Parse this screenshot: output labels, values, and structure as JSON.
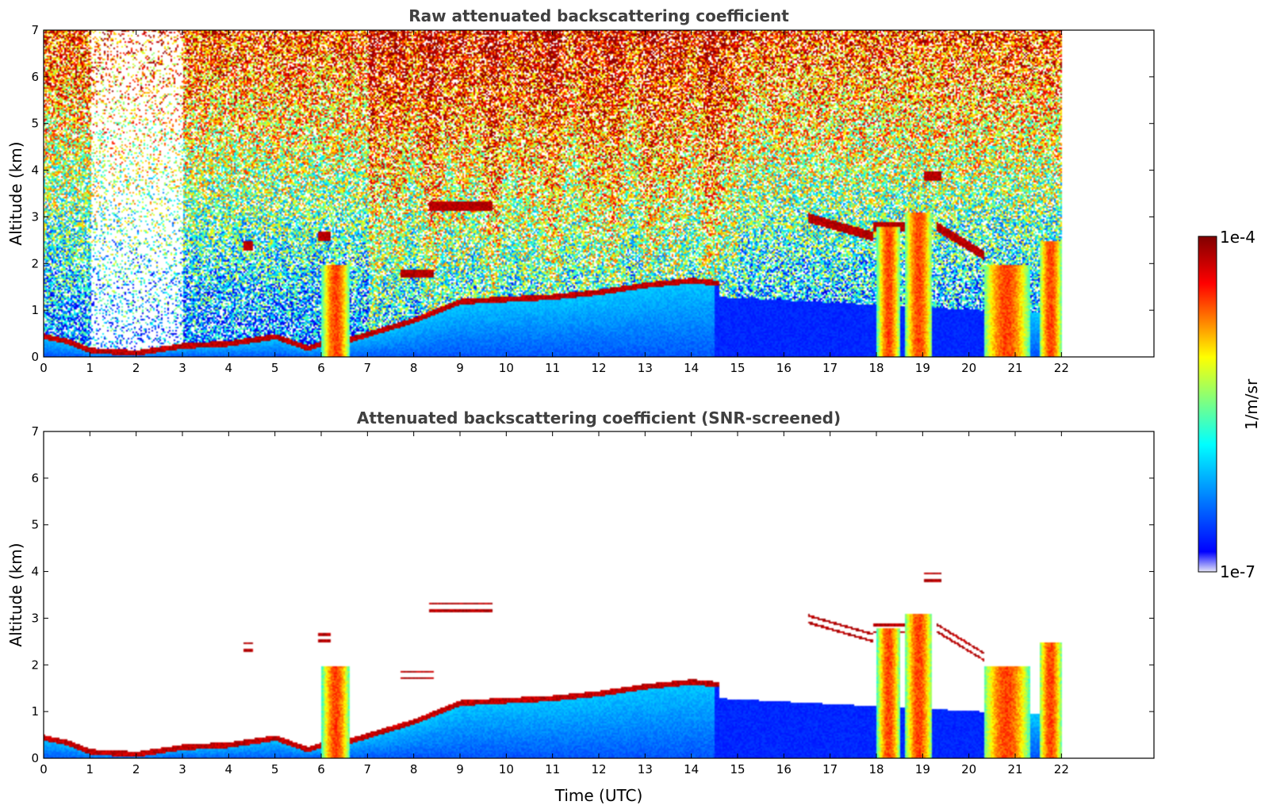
{
  "chart_data": [
    {
      "type": "heatmap",
      "title": "Raw attenuated backscattering coefficient",
      "xlabel": "",
      "ylabel": "Altitude (km)",
      "xlim": [
        0,
        24
      ],
      "ylim": [
        0,
        7
      ],
      "x_ticks": [
        "0",
        "1",
        "2",
        "3",
        "4",
        "5",
        "6",
        "7",
        "8",
        "9",
        "10",
        "11",
        "12",
        "13",
        "14",
        "15",
        "16",
        "17",
        "18",
        "19",
        "20",
        "21",
        "22"
      ],
      "y_ticks": [
        "0",
        "1",
        "2",
        "3",
        "4",
        "5",
        "6",
        "7"
      ],
      "data_end_time": 22,
      "screened": false
    },
    {
      "type": "heatmap",
      "title": "Attenuated backscattering coefficient (SNR-screened)",
      "xlabel": "Time (UTC)",
      "ylabel": "Altitude (km)",
      "xlim": [
        0,
        24
      ],
      "ylim": [
        0,
        7
      ],
      "x_ticks": [
        "0",
        "1",
        "2",
        "3",
        "4",
        "5",
        "6",
        "7",
        "8",
        "9",
        "10",
        "11",
        "12",
        "13",
        "14",
        "15",
        "16",
        "17",
        "18",
        "19",
        "20",
        "21",
        "22"
      ],
      "y_ticks": [
        "0",
        "1",
        "2",
        "3",
        "4",
        "5",
        "6",
        "7"
      ],
      "data_end_time": 22,
      "screened": true
    }
  ],
  "colorbar": {
    "label": "1/m/sr",
    "max_label": "1e-4",
    "min_label": "1e-7",
    "scale": "log",
    "colormap": "jet",
    "colors": [
      "#e6e6f8",
      "#0000ff",
      "#00ffff",
      "#ffff00",
      "#ff0000",
      "#800000"
    ]
  },
  "features": {
    "boundary_layer": [
      [
        0,
        0.45
      ],
      [
        0.5,
        0.35
      ],
      [
        1,
        0.15
      ],
      [
        2,
        0.1
      ],
      [
        3,
        0.25
      ],
      [
        4,
        0.3
      ],
      [
        5,
        0.45
      ],
      [
        5.7,
        0.2
      ],
      [
        6,
        0.3
      ],
      [
        6.5,
        0.35
      ],
      [
        7,
        0.5
      ],
      [
        8,
        0.8
      ],
      [
        9,
        1.2
      ],
      [
        10,
        1.25
      ],
      [
        11,
        1.3
      ],
      [
        12,
        1.4
      ],
      [
        13,
        1.55
      ],
      [
        14,
        1.65
      ],
      [
        14.5,
        1.6
      ]
    ],
    "clouds": [
      {
        "t0": 8.3,
        "t1": 9.7,
        "alt": 3.25
      },
      {
        "t0": 16.5,
        "t1": 17.9,
        "alt": 3.0,
        "alt_end": 2.6
      },
      {
        "t0": 17.9,
        "t1": 19.2,
        "alt": 2.8
      },
      {
        "t0": 19.3,
        "t1": 20.3,
        "alt": 2.8,
        "alt_end": 2.2
      },
      {
        "t0": 20.3,
        "t1": 21.2,
        "alt": 1.9
      },
      {
        "t0": 19.0,
        "t1": 19.4,
        "alt": 3.9
      },
      {
        "t0": 4.3,
        "t1": 4.5,
        "alt": 2.4
      },
      {
        "t0": 5.9,
        "t1": 6.2,
        "alt": 2.6
      },
      {
        "t0": 7.7,
        "t1": 8.4,
        "alt": 1.8
      }
    ],
    "precip_columns": [
      {
        "t0": 6.0,
        "t1": 6.6,
        "top": 2.0
      },
      {
        "t0": 18.0,
        "t1": 18.5,
        "top": 2.8
      },
      {
        "t0": 18.6,
        "t1": 19.2,
        "top": 3.1
      },
      {
        "t0": 20.3,
        "t1": 21.3,
        "top": 2.0
      },
      {
        "t0": 21.5,
        "t1": 22.0,
        "top": 2.5
      }
    ]
  }
}
